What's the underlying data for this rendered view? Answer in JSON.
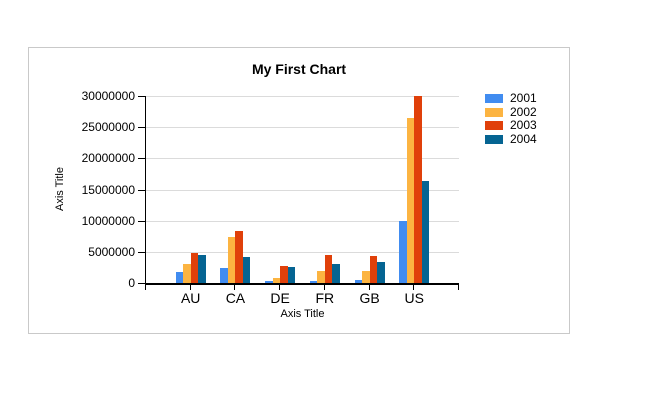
{
  "panel": {
    "border_color": "#C9C9C9",
    "background": "#FFFFFF"
  },
  "chart_data": {
    "type": "bar",
    "title": "My First Chart",
    "xlabel": "Axis Title",
    "ylabel": "Axis Title",
    "categories": [
      "AU",
      "CA",
      "DE",
      "FR",
      "GB",
      "US"
    ],
    "series": [
      {
        "name": "2001",
        "color": "#418CF0",
        "values": [
          1700000,
          2400000,
          400000,
          250000,
          500000,
          10000000
        ]
      },
      {
        "name": "2002",
        "color": "#FCB441",
        "values": [
          3000000,
          7300000,
          800000,
          2000000,
          1900000,
          26500000
        ]
      },
      {
        "name": "2003",
        "color": "#E0400A",
        "values": [
          4800000,
          8300000,
          2700000,
          4500000,
          4400000,
          30000000
        ]
      },
      {
        "name": "2004",
        "color": "#056492",
        "values": [
          4500000,
          4200000,
          2600000,
          3100000,
          3300000,
          16300000
        ]
      }
    ],
    "ylim": [
      0,
      30000000
    ],
    "ytick_step": 5000000,
    "yticks": [
      "0",
      "5000000",
      "10000000",
      "15000000",
      "20000000",
      "25000000",
      "30000000"
    ],
    "grid": "horizontal-only",
    "axis_color": "#000000",
    "gridline_color": "#DBDBDB",
    "legend_position": "right",
    "legend_labels": [
      "2001",
      "2002",
      "2003",
      "2004"
    ]
  }
}
